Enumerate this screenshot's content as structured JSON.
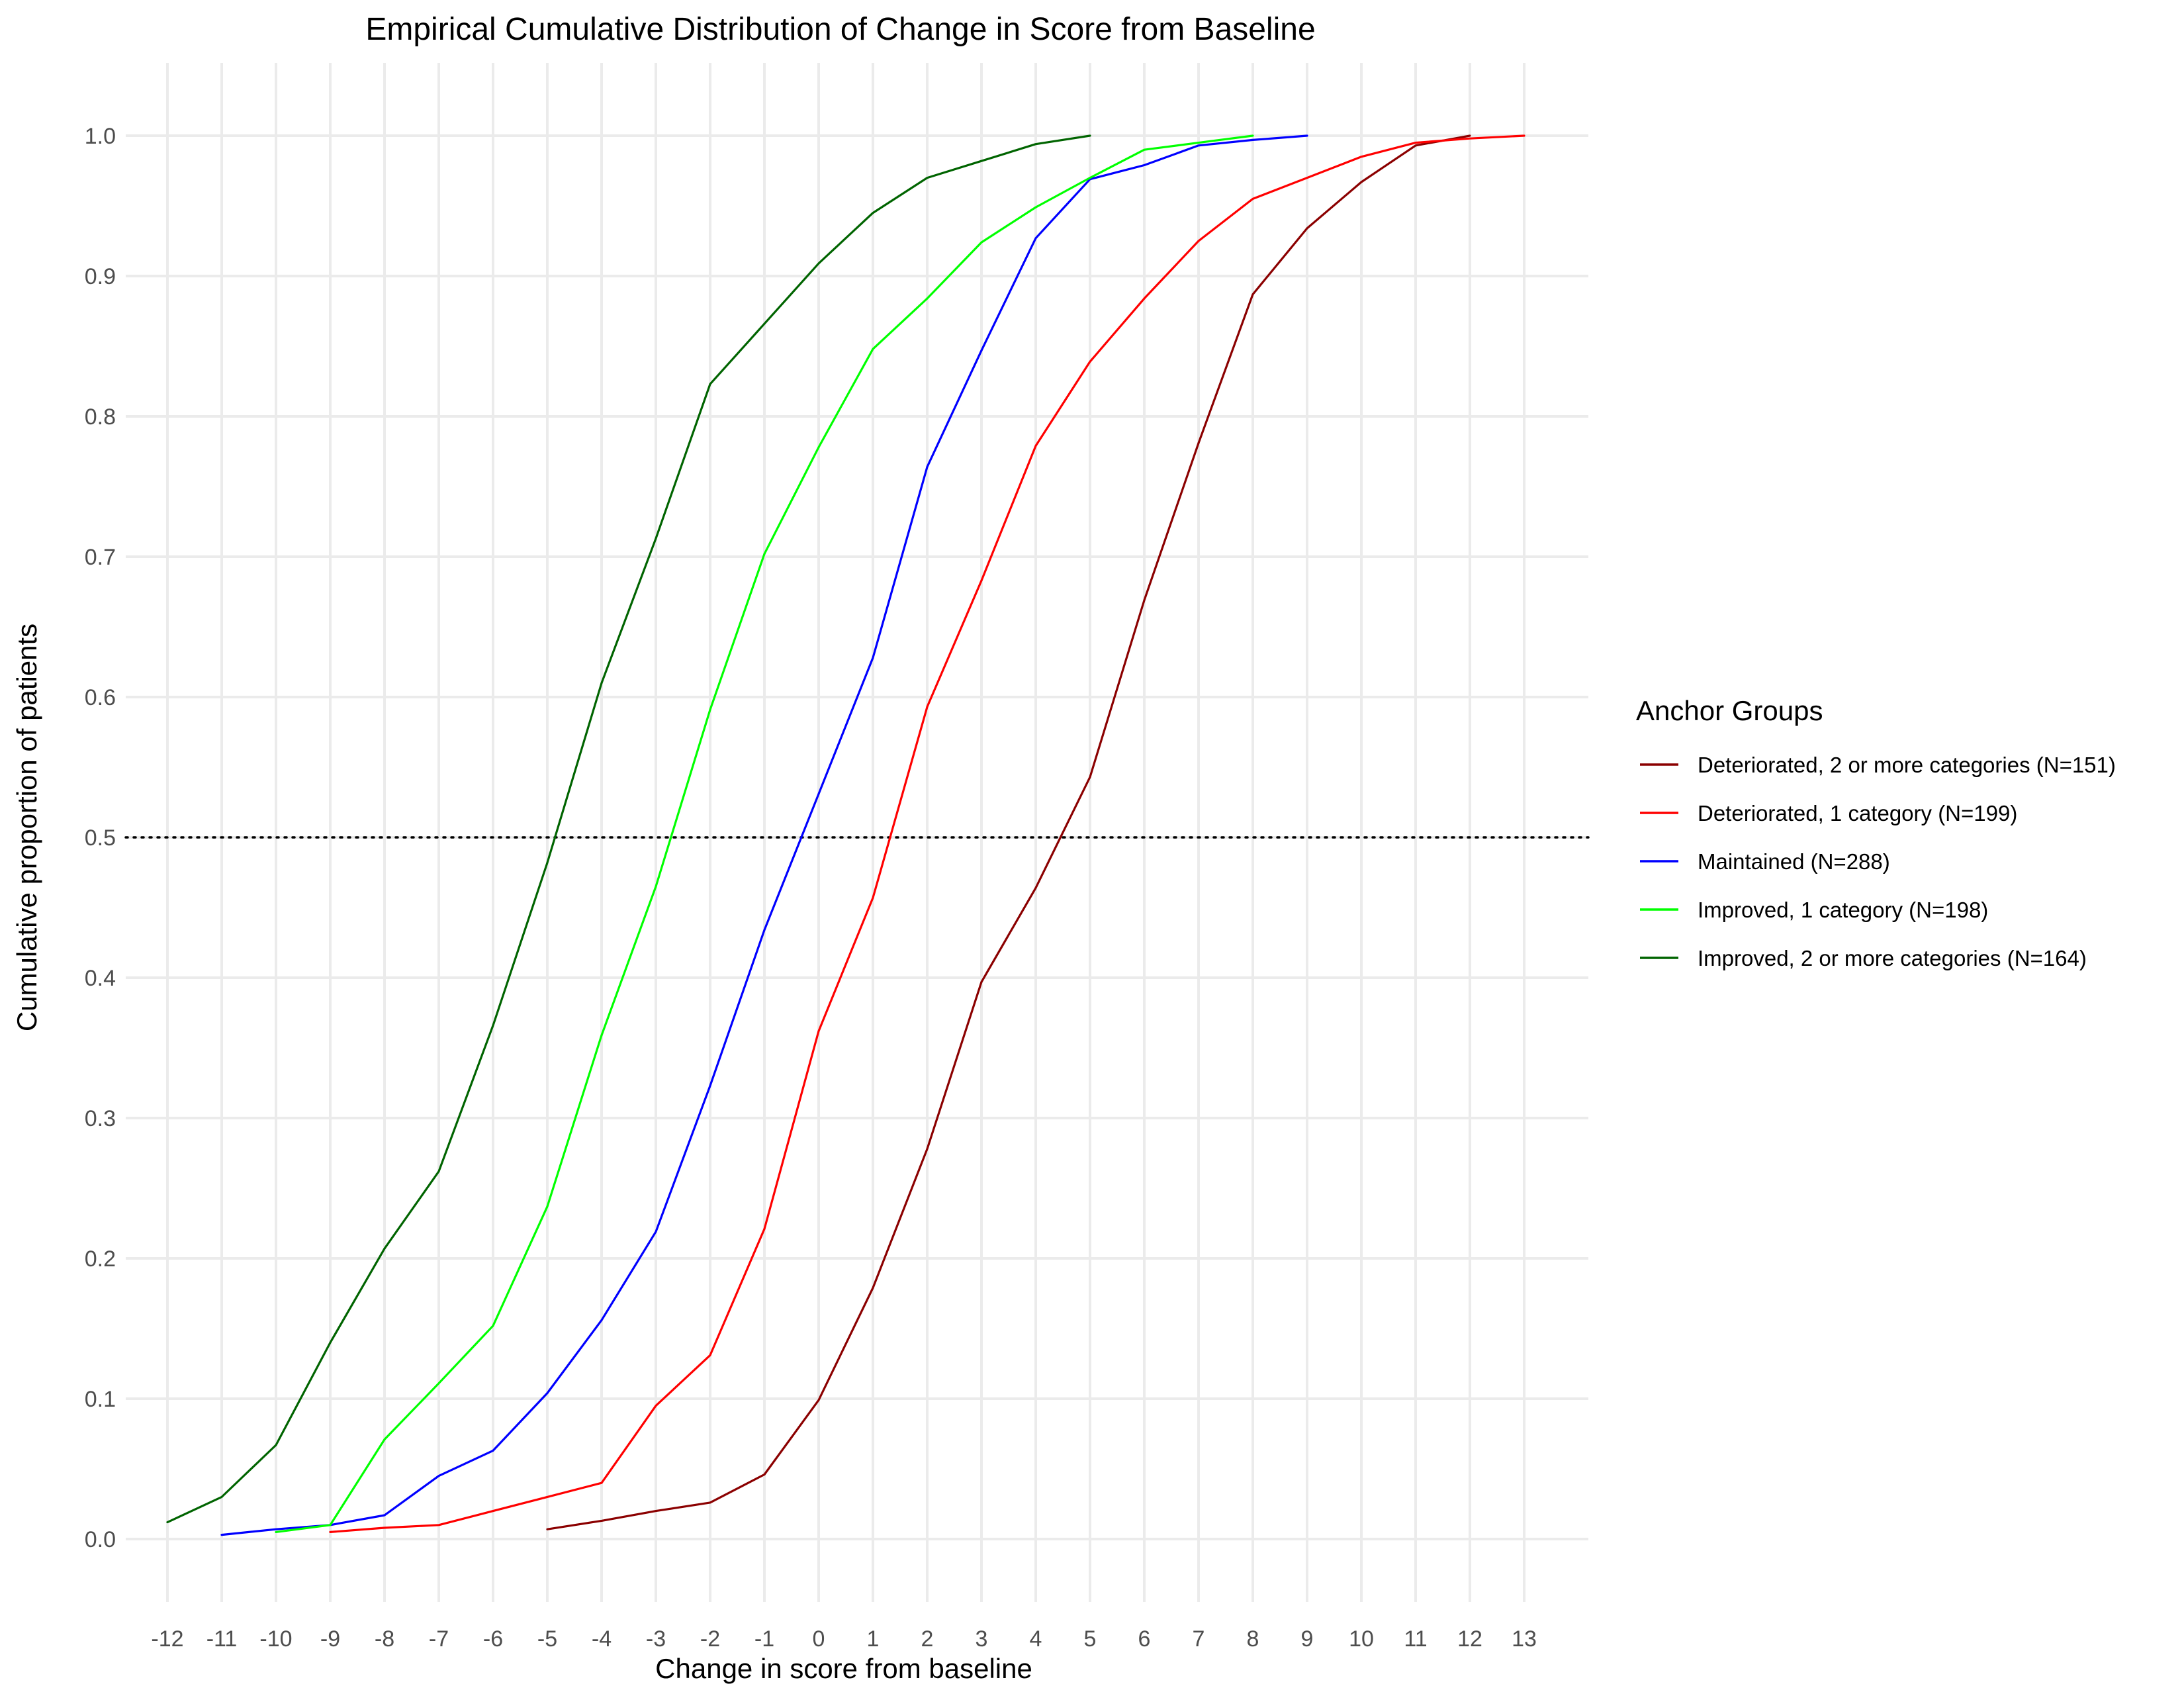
{
  "chart_data": {
    "type": "line",
    "title": "Empirical Cumulative Distribution of Change in Score from Baseline",
    "xlabel": "Change in score from baseline",
    "ylabel": "Cumulative proportion of patients",
    "xlim": [
      -12,
      13
    ],
    "ylim": [
      0,
      1
    ],
    "x_ticks": [
      "-12",
      "-11",
      "-10",
      "-9",
      "-8",
      "-7",
      "-6",
      "-5",
      "-4",
      "-3",
      "-2",
      "-1",
      "0",
      "1",
      "2",
      "3",
      "4",
      "5",
      "6",
      "7",
      "8",
      "9",
      "10",
      "11",
      "12",
      "13"
    ],
    "y_ticks": [
      "0.0",
      "0.1",
      "0.2",
      "0.3",
      "0.4",
      "0.5",
      "0.6",
      "0.7",
      "0.8",
      "0.9",
      "1.0"
    ],
    "grid": true,
    "reference_line": {
      "y": 0.5,
      "style": "dotted",
      "color": "#000000"
    },
    "legend": {
      "title": "Anchor Groups",
      "position": "right"
    },
    "series": [
      {
        "name": "Deteriorated, 2 or more categories (N=151)",
        "color": "#8B0000",
        "x": [
          -5,
          -4,
          -3,
          -2,
          -1,
          0,
          1,
          2,
          3,
          4,
          5,
          6,
          7,
          8,
          9,
          10,
          11,
          12
        ],
        "y": [
          0.007,
          0.013,
          0.02,
          0.026,
          0.046,
          0.099,
          0.179,
          0.278,
          0.397,
          0.464,
          0.543,
          0.669,
          0.781,
          0.887,
          0.934,
          0.967,
          0.993,
          1.0
        ]
      },
      {
        "name": "Deteriorated, 1 category (N=199)",
        "color": "#FF0000",
        "x": [
          -9,
          -8,
          -7,
          -6,
          -5,
          -4,
          -3,
          -2,
          -1,
          0,
          1,
          2,
          3,
          4,
          5,
          6,
          7,
          8,
          9,
          10,
          11,
          12,
          13
        ],
        "y": [
          0.005,
          0.008,
          0.01,
          0.02,
          0.03,
          0.04,
          0.095,
          0.131,
          0.221,
          0.362,
          0.457,
          0.593,
          0.683,
          0.779,
          0.839,
          0.884,
          0.925,
          0.955,
          0.97,
          0.985,
          0.995,
          0.998,
          1.0
        ]
      },
      {
        "name": "Maintained (N=288)",
        "color": "#0000FF",
        "x": [
          -11,
          -10,
          -9,
          -8,
          -7,
          -6,
          -5,
          -4,
          -3,
          -2,
          -1,
          0,
          1,
          2,
          3,
          4,
          5,
          6,
          7,
          8,
          9
        ],
        "y": [
          0.003,
          0.007,
          0.01,
          0.017,
          0.045,
          0.063,
          0.104,
          0.156,
          0.219,
          0.323,
          0.434,
          0.531,
          0.628,
          0.764,
          0.847,
          0.927,
          0.969,
          0.979,
          0.993,
          0.997,
          1.0
        ]
      },
      {
        "name": "Improved, 1 category (N=198)",
        "color": "#00FF00",
        "x": [
          -10,
          -9,
          -8,
          -7,
          -6,
          -5,
          -4,
          -3,
          -2,
          -1,
          0,
          1,
          2,
          3,
          4,
          5,
          6,
          7,
          8
        ],
        "y": [
          0.005,
          0.01,
          0.071,
          0.111,
          0.152,
          0.237,
          0.359,
          0.465,
          0.591,
          0.702,
          0.778,
          0.848,
          0.884,
          0.924,
          0.949,
          0.97,
          0.99,
          0.995,
          1.0
        ]
      },
      {
        "name": "Improved, 2 or more categories (N=164)",
        "color": "#006400",
        "x": [
          -12,
          -11,
          -10,
          -9,
          -8,
          -7,
          -6,
          -5,
          -4,
          -3,
          -2,
          -1,
          0,
          1,
          2,
          3,
          4,
          5
        ],
        "y": [
          0.012,
          0.03,
          0.067,
          0.14,
          0.207,
          0.262,
          0.366,
          0.482,
          0.61,
          0.713,
          0.823,
          0.866,
          0.909,
          0.945,
          0.97,
          0.982,
          0.994,
          1.0
        ]
      }
    ]
  }
}
